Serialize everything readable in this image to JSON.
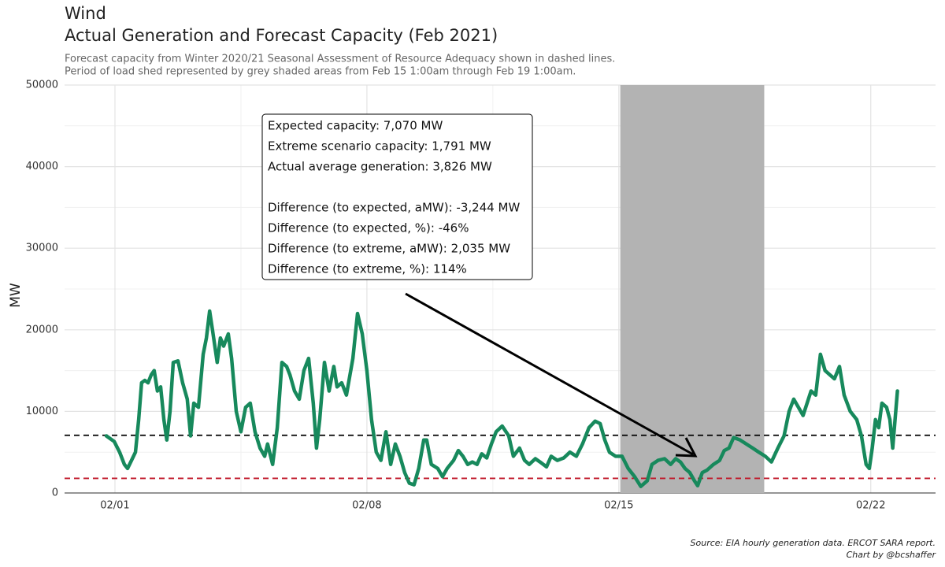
{
  "chart_data": {
    "type": "line",
    "title": "Wind",
    "subtitle": "Actual Generation and Forecast Capacity (Feb 2021)",
    "caption": [
      "Forecast capacity from Winter 2020/21 Seasonal Assessment of Resource Adequacy shown in dashed lines.",
      "Period of load shed represented by grey shaded areas from Feb 15 1:00am through Feb 19 1:00am."
    ],
    "source": [
      "Source: EIA hourly generation data. ERCOT SARA report.",
      "Chart by @bcshaffer"
    ],
    "ylabel": "MW",
    "color": "#17895c",
    "x": [
      0.76,
      0.98,
      1.13,
      1.26,
      1.35,
      1.46,
      1.57,
      1.66,
      1.74,
      1.83,
      1.92,
      2.01,
      2.09,
      2.18,
      2.27,
      2.36,
      2.44,
      2.53,
      2.62,
      2.75,
      2.88,
      3.01,
      3.1,
      3.19,
      3.32,
      3.45,
      3.54,
      3.63,
      3.71,
      3.84,
      3.93,
      4.02,
      4.15,
      4.24,
      4.37,
      4.5,
      4.63,
      4.76,
      4.89,
      5.03,
      5.16,
      5.24,
      5.38,
      5.51,
      5.64,
      5.77,
      5.86,
      5.99,
      6.12,
      6.25,
      6.38,
      6.51,
      6.6,
      6.69,
      6.82,
      6.95,
      7.08,
      7.17,
      7.3,
      7.43,
      7.61,
      7.74,
      7.87,
      8.0,
      8.13,
      8.26,
      8.39,
      8.53,
      8.66,
      8.79,
      8.92,
      9.05,
      9.18,
      9.31,
      9.44,
      9.58,
      9.66,
      9.79,
      9.97,
      10.1,
      10.23,
      10.41,
      10.54,
      10.67,
      10.8,
      10.93,
      11.06,
      11.19,
      11.33,
      11.46,
      11.59,
      11.76,
      11.94,
      12.07,
      12.24,
      12.38,
      12.51,
      12.68,
      12.81,
      12.99,
      13.12,
      13.29,
      13.47,
      13.64,
      13.82,
      13.99,
      14.17,
      14.34,
      14.48,
      14.61,
      14.74,
      14.91,
      15.09,
      15.26,
      15.44,
      15.61,
      15.79,
      15.92,
      16.09,
      16.27,
      16.44,
      16.58,
      16.71,
      16.84,
      16.97,
      17.1,
      17.19,
      17.32,
      17.45,
      17.63,
      17.8,
      17.93,
      18.06,
      18.19,
      18.37,
      18.54,
      18.72,
      18.89,
      19.07,
      19.24,
      19.42,
      19.59,
      19.73,
      19.86,
      19.99,
      20.12,
      20.34,
      20.47,
      20.6,
      20.73,
      20.86,
      20.99,
      21.13,
      21.26,
      21.43,
      21.61,
      21.74,
      21.87,
      21.96,
      22.04,
      22.13,
      22.22,
      22.31,
      22.44,
      22.53,
      22.61,
      22.74
    ],
    "values": [
      7000,
      6300,
      5000,
      3500,
      3000,
      4000,
      5000,
      9000,
      13500,
      13800,
      13500,
      14500,
      15000,
      12500,
      13000,
      9000,
      6500,
      10000,
      16000,
      16200,
      13500,
      11500,
      7000,
      11000,
      10500,
      17000,
      19000,
      22300,
      20000,
      16000,
      19000,
      18000,
      19500,
      16500,
      10000,
      7500,
      10500,
      11000,
      7500,
      5500,
      4500,
      6000,
      3500,
      8000,
      16000,
      15500,
      14500,
      12500,
      11500,
      15000,
      16500,
      11000,
      5500,
      9000,
      16000,
      12500,
      15500,
      13000,
      13500,
      12000,
      16500,
      22000,
      19500,
      15000,
      9000,
      5000,
      4000,
      7500,
      3500,
      6000,
      4500,
      2500,
      1200,
      1000,
      3000,
      6500,
      6500,
      3500,
      3000,
      2000,
      3000,
      4000,
      5200,
      4500,
      3500,
      3800,
      3500,
      4800,
      4300,
      6000,
      7500,
      8200,
      7000,
      4500,
      5500,
      4000,
      3500,
      4200,
      3800,
      3200,
      4500,
      4000,
      4300,
      5000,
      4500,
      6000,
      8000,
      8800,
      8500,
      6500,
      5000,
      4500,
      4500,
      3000,
      2000,
      800,
      1500,
      3500,
      4000,
      4200,
      3500,
      4200,
      3800,
      3000,
      2500,
      1500,
      900,
      2500,
      2800,
      3500,
      4000,
      5200,
      5500,
      6800,
      6500,
      6000,
      5500,
      5000,
      4500,
      3800,
      5500,
      7000,
      10000,
      11500,
      10500,
      9500,
      12500,
      12000,
      17000,
      15000,
      14500,
      14000,
      15500,
      12000,
      10000,
      9000,
      7000,
      3500,
      3000,
      5500,
      9000,
      8000,
      11000,
      10500,
      9000,
      5500,
      12500
    ],
    "hlines": [
      {
        "value": 7070,
        "color": "#000000"
      },
      {
        "value": 1791,
        "color": "#c0182a"
      }
    ],
    "shaded_x": [
      15.04,
      19.04
    ],
    "annotation": [
      "Expected capacity: 7,070 MW",
      "Extreme scenario capacity: 1,791 MW",
      "Actual average generation: 3,826 MW",
      "Difference (to expected, aMW): -3,244 MW",
      "Difference (to expected, %): -46%",
      "Difference (to extreme, aMW): 2,035 MW",
      "Difference (to extreme, %): 114%"
    ],
    "xlim": [
      -0.4,
      23.8
    ],
    "ylim": [
      0,
      50000
    ],
    "xticks": [
      {
        "value": 1,
        "label": "02/01"
      },
      {
        "value": 8,
        "label": "02/08"
      },
      {
        "value": 15,
        "label": "02/15"
      },
      {
        "value": 22,
        "label": "02/22"
      }
    ],
    "yticks": [
      0,
      10000,
      20000,
      30000,
      40000,
      50000
    ],
    "grid": true
  }
}
